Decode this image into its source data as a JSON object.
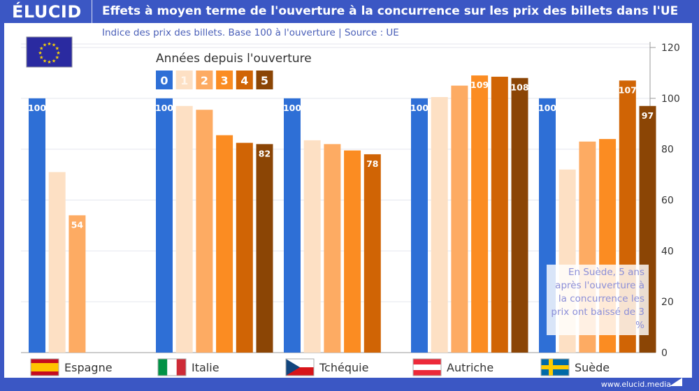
{
  "header": {
    "logo": "ÉLUCID",
    "title": "Effets à moyen terme de l'ouverture à la concurrence sur les prix des billets dans l'UE"
  },
  "footer": {
    "url": "www.elucid.media"
  },
  "chart_data": {
    "type": "bar",
    "title": "Effets à moyen terme de l'ouverture à la concurrence sur les prix des billets dans l'UE",
    "subtitle": "Indice des prix des billets. Base 100 à l'ouverture  |  Source : UE",
    "legend_title": "Années depuis l'ouverture",
    "legend_placement": "top-left",
    "categories": [
      "Espagne",
      "Italie",
      "Tchéquie",
      "Autriche",
      "Suède"
    ],
    "series": [
      {
        "name": "0",
        "color": "#2e6fd6",
        "values": [
          100,
          100,
          100,
          100,
          100
        ]
      },
      {
        "name": "1",
        "color": "#fde0c4",
        "values": [
          71,
          97,
          83.5,
          100.5,
          72
        ]
      },
      {
        "name": "2",
        "color": "#fdab63",
        "values": [
          54,
          95.5,
          82,
          105,
          83
        ]
      },
      {
        "name": "3",
        "color": "#fb8c22",
        "values": [
          null,
          85.5,
          79.5,
          109,
          84
        ]
      },
      {
        "name": "4",
        "color": "#d06405",
        "values": [
          null,
          82.5,
          78,
          108.5,
          107
        ]
      },
      {
        "name": "5",
        "color": "#8b4505",
        "values": [
          null,
          82,
          null,
          108,
          97
        ]
      }
    ],
    "data_labels": [
      {
        "category": "Espagne",
        "series": "0",
        "text": "100"
      },
      {
        "category": "Espagne",
        "series": "2",
        "text": "54"
      },
      {
        "category": "Italie",
        "series": "0",
        "text": "100"
      },
      {
        "category": "Italie",
        "series": "5",
        "text": "82"
      },
      {
        "category": "Tchéquie",
        "series": "0",
        "text": "100"
      },
      {
        "category": "Tchéquie",
        "series": "4",
        "text": "78"
      },
      {
        "category": "Autriche",
        "series": "0",
        "text": "100"
      },
      {
        "category": "Autriche",
        "series": "3",
        "text": "109"
      },
      {
        "category": "Autriche",
        "series": "5",
        "text": "108"
      },
      {
        "category": "Suède",
        "series": "0",
        "text": "100"
      },
      {
        "category": "Suède",
        "series": "4",
        "text": "107"
      },
      {
        "category": "Suède",
        "series": "5",
        "text": "97"
      }
    ],
    "yaxis": {
      "position": "right",
      "ylim": [
        0,
        120
      ],
      "ticks": [
        0,
        20,
        40,
        60,
        80,
        100,
        120
      ]
    },
    "grid": true,
    "annotation": "En Suède, 5 ans après l'ouverture à la concurrence les prix ont baissé de 3 %",
    "flags": {
      "Espagne": "spain-flag",
      "Italie": "italy-flag",
      "Tchéquie": "czechia-flag",
      "Autriche": "austria-flag",
      "Suède": "sweden-flag",
      "header": "eu-flag"
    }
  }
}
